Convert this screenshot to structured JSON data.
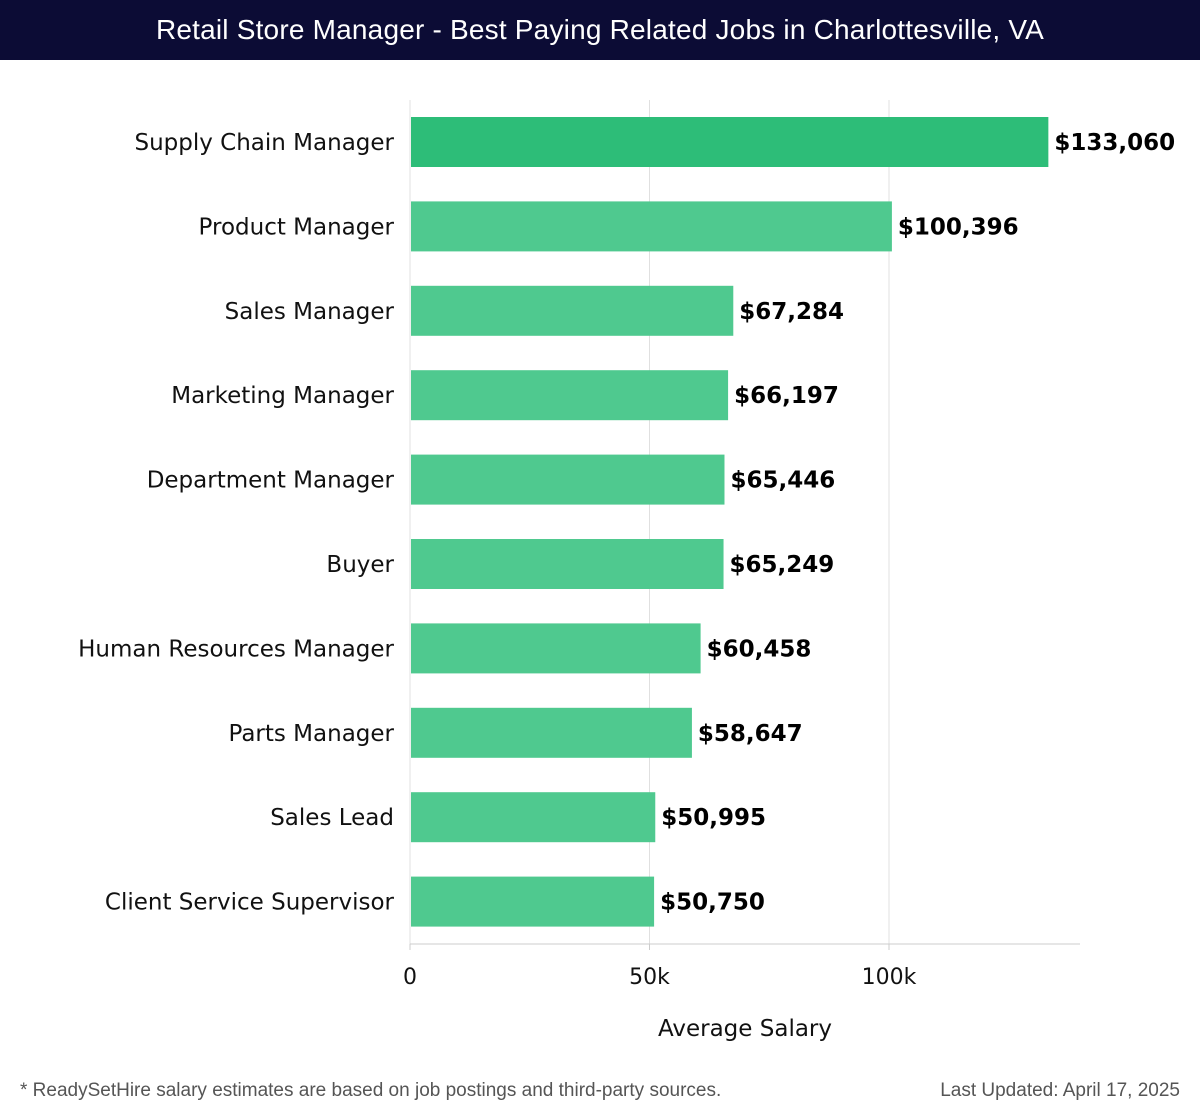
{
  "header": {
    "title": "Retail Store Manager - Best Paying Related Jobs in Charlottesville, VA"
  },
  "footer": {
    "note": "* ReadySetHire salary estimates are based on job postings and third-party sources.",
    "updated": "Last Updated: April 17, 2025"
  },
  "colors": {
    "header_bg": "#0c0c35",
    "bar_top": "#2dbd78",
    "bar": "#4fc98f",
    "grid": "#e0e0e0"
  },
  "chart_data": {
    "type": "bar",
    "orientation": "horizontal",
    "title": "Retail Store Manager - Best Paying Related Jobs in Charlottesville, VA",
    "xlabel": "Average Salary",
    "ylabel": "",
    "xlim": [
      0,
      140000
    ],
    "x_ticks": [
      {
        "value": 0,
        "label": "0"
      },
      {
        "value": 50000,
        "label": "50k"
      },
      {
        "value": 100000,
        "label": "100k"
      }
    ],
    "grid": true,
    "categories": [
      "Supply Chain Manager",
      "Product Manager",
      "Sales Manager",
      "Marketing Manager",
      "Department Manager",
      "Buyer",
      "Human Resources Manager",
      "Parts Manager",
      "Sales Lead",
      "Client Service Supervisor"
    ],
    "values": [
      133060,
      100396,
      67284,
      66197,
      65446,
      65249,
      60458,
      58647,
      50995,
      50750
    ],
    "value_labels": [
      "$133,060",
      "$100,396",
      "$67,284",
      "$66,197",
      "$65,446",
      "$65,249",
      "$60,458",
      "$58,647",
      "$50,995",
      "$50,750"
    ]
  }
}
